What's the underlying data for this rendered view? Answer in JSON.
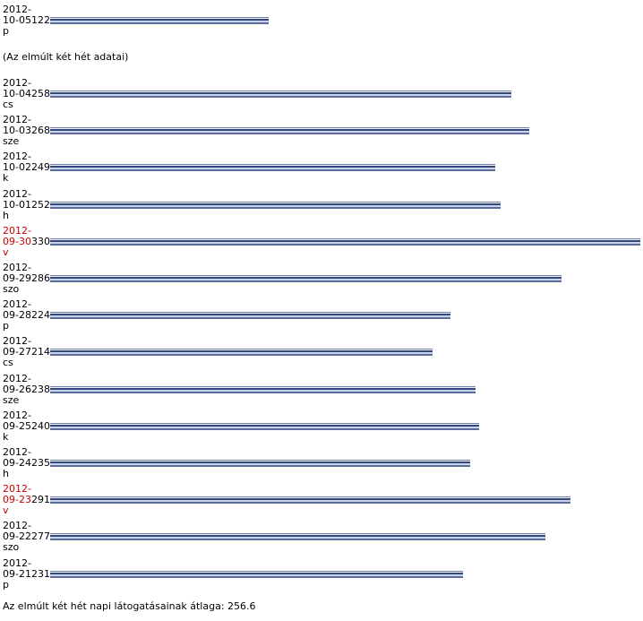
{
  "chart_data": {
    "type": "bar",
    "orientation": "horizontal",
    "today": {
      "date": "2012-10-05",
      "value": 122,
      "weekday": "p"
    },
    "note": "(Az elmúlt két hét adatai)",
    "rows": [
      {
        "date": "2012-10-04",
        "value": 258,
        "weekday": "cs",
        "sunday": false
      },
      {
        "date": "2012-10-03",
        "value": 268,
        "weekday": "sze",
        "sunday": false
      },
      {
        "date": "2012-10-02",
        "value": 249,
        "weekday": "k",
        "sunday": false
      },
      {
        "date": "2012-10-01",
        "value": 252,
        "weekday": "h",
        "sunday": false
      },
      {
        "date": "2012-09-30",
        "value": 330,
        "weekday": "v",
        "sunday": true
      },
      {
        "date": "2012-09-29",
        "value": 286,
        "weekday": "szo",
        "sunday": false
      },
      {
        "date": "2012-09-28",
        "value": 224,
        "weekday": "p",
        "sunday": false
      },
      {
        "date": "2012-09-27",
        "value": 214,
        "weekday": "cs",
        "sunday": false
      },
      {
        "date": "2012-09-26",
        "value": 238,
        "weekday": "sze",
        "sunday": false
      },
      {
        "date": "2012-09-25",
        "value": 240,
        "weekday": "k",
        "sunday": false
      },
      {
        "date": "2012-09-24",
        "value": 235,
        "weekday": "h",
        "sunday": false
      },
      {
        "date": "2012-09-23",
        "value": 291,
        "weekday": "v",
        "sunday": true
      },
      {
        "date": "2012-09-22",
        "value": 277,
        "weekday": "szo",
        "sunday": false
      },
      {
        "date": "2012-09-21",
        "value": 231,
        "weekday": "p",
        "sunday": false
      }
    ],
    "average_text": "Az elmúlt két hét napi látogatásainak átlaga: 256.6",
    "xlim": [
      0,
      330
    ],
    "colors": {
      "bar": "#34477c",
      "sunday_label": "#cc0000"
    }
  }
}
